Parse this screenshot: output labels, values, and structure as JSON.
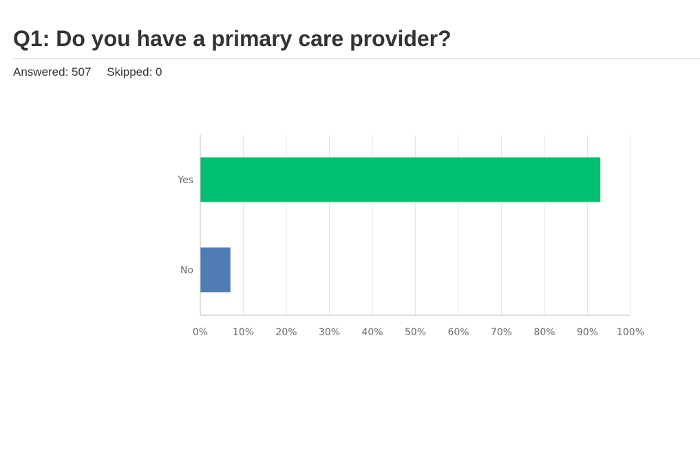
{
  "question": {
    "title": "Q1: Do you have a primary care provider?",
    "answered_text": "Answered: 507",
    "skipped_text": "Skipped: 0"
  },
  "colors": {
    "yes_bar": "#00bf6f",
    "no_bar": "#507cb6",
    "gridline": "#e6e6e6",
    "axis": "#bdbdbd"
  },
  "chart_data": {
    "type": "bar",
    "orientation": "horizontal",
    "categories": [
      "Yes",
      "No"
    ],
    "values": [
      93,
      7
    ],
    "xlim": [
      0,
      100
    ],
    "x_ticks": [
      "0%",
      "10%",
      "20%",
      "30%",
      "40%",
      "50%",
      "60%",
      "70%",
      "80%",
      "90%",
      "100%"
    ],
    "grid": true,
    "legend": "none"
  }
}
